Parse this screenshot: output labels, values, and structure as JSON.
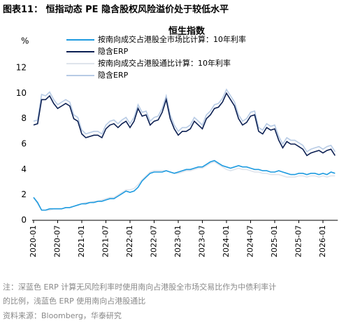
{
  "header": "图表11： 恒指动态 PE 隐含股权风险溢价处于较低水平",
  "notes": [
    "注：深蓝色 ERP 计算无风险利率时使用南向占港股全市场交易比作为中债利率计",
    "的比例，浅蓝色 ERP 使用南向占港股通比",
    "资料来源：Bloomberg，华泰研究"
  ],
  "chart_data": {
    "type": "line",
    "title": "恒生指数",
    "y_label": "%",
    "categories": [
      "2020-01",
      null,
      null,
      null,
      null,
      null,
      "2020-07",
      null,
      null,
      null,
      null,
      null,
      "2021-01",
      null,
      null,
      null,
      null,
      null,
      "2021-07",
      null,
      null,
      null,
      null,
      null,
      "2022-01",
      null,
      null,
      null,
      null,
      null,
      "2022-07",
      null,
      null,
      null,
      null,
      null,
      "2023-01",
      null,
      null,
      null,
      null,
      null,
      "2023-07",
      null,
      null,
      null,
      null,
      null,
      "2024-01",
      null,
      null,
      null,
      null,
      null,
      "2024-07",
      null,
      null,
      null,
      null,
      null,
      "2025-01",
      null,
      null,
      null,
      null,
      null,
      "2025-07",
      null,
      null,
      null,
      null,
      null,
      "2026-01",
      null,
      null,
      null
    ],
    "ylim": [
      0,
      12
    ],
    "yticks": [
      0,
      2,
      4,
      6,
      8,
      10,
      12
    ],
    "series": [
      {
        "name": "按南向成交占港股全市场比计算：10年利率",
        "color": "#1e9be0",
        "values": [
          1.8,
          1.4,
          0.8,
          0.8,
          0.9,
          0.9,
          0.9,
          0.9,
          1.0,
          1.0,
          1.1,
          1.2,
          1.3,
          1.3,
          1.4,
          1.4,
          1.5,
          1.5,
          1.6,
          1.7,
          1.7,
          1.9,
          2.1,
          2.3,
          2.2,
          2.3,
          2.6,
          3.1,
          3.4,
          3.7,
          3.8,
          3.8,
          3.8,
          3.9,
          3.8,
          3.7,
          3.8,
          3.9,
          4.0,
          4.0,
          4.1,
          4.2,
          4.2,
          4.4,
          4.6,
          4.7,
          4.5,
          4.3,
          4.2,
          4.1,
          4.2,
          4.3,
          4.2,
          4.2,
          4.1,
          4.0,
          4.0,
          3.9,
          3.9,
          3.8,
          3.8,
          3.9,
          3.8,
          3.7,
          3.6,
          3.6,
          3.7,
          3.7,
          3.6,
          3.7,
          3.7,
          3.6,
          3.7,
          3.6,
          3.8,
          3.7
        ]
      },
      {
        "name": "隐含ERP",
        "color": "#0b1f52",
        "values": [
          7.5,
          7.6,
          9.5,
          9.5,
          9.8,
          9.2,
          8.8,
          9.0,
          9.2,
          9.0,
          8.0,
          7.8,
          6.8,
          6.5,
          6.6,
          6.7,
          6.7,
          6.5,
          7.2,
          7.5,
          7.6,
          7.3,
          7.6,
          7.8,
          7.3,
          7.8,
          8.8,
          8.2,
          8.3,
          7.5,
          7.8,
          7.9,
          8.5,
          9.5,
          8.0,
          7.2,
          6.7,
          7.0,
          7.0,
          7.2,
          7.8,
          7.5,
          7.2,
          8.0,
          8.3,
          8.8,
          8.9,
          9.3,
          10.0,
          9.5,
          9.0,
          8.0,
          7.5,
          7.7,
          8.2,
          8.3,
          7.0,
          6.8,
          7.3,
          7.1,
          7.2,
          6.3,
          5.7,
          6.2,
          6.0,
          6.0,
          5.8,
          5.6,
          5.1,
          5.3,
          5.4,
          5.5,
          5.3,
          5.5,
          5.6,
          5.1
        ]
      },
      {
        "name": "按南向成交占港股通比计算：10年利率",
        "color": "#dfe4ec",
        "values": [
          1.8,
          1.3,
          0.8,
          0.8,
          0.8,
          0.9,
          0.9,
          0.9,
          1.0,
          1.0,
          1.1,
          1.2,
          1.3,
          1.4,
          1.4,
          1.5,
          1.5,
          1.6,
          1.7,
          1.8,
          1.8,
          2.0,
          2.2,
          2.4,
          2.4,
          2.5,
          2.8,
          3.2,
          3.5,
          3.8,
          3.9,
          3.9,
          3.9,
          3.9,
          3.8,
          3.7,
          3.7,
          3.8,
          3.9,
          3.9,
          4.0,
          4.1,
          4.1,
          4.3,
          4.5,
          4.6,
          4.4,
          4.2,
          4.0,
          3.9,
          4.0,
          4.1,
          4.0,
          4.0,
          3.9,
          3.8,
          3.8,
          3.7,
          3.7,
          3.6,
          3.6,
          3.6,
          3.5,
          3.4,
          3.4,
          3.4,
          3.5,
          3.5,
          3.4,
          3.5,
          3.5,
          3.4,
          3.5,
          3.4,
          3.5,
          3.5
        ]
      },
      {
        "name": "隐含ERP",
        "color": "#b7cbe5",
        "values": [
          7.8,
          7.9,
          9.9,
          9.8,
          10.1,
          9.5,
          9.1,
          9.3,
          9.5,
          9.3,
          8.3,
          8.1,
          7.1,
          6.8,
          6.9,
          7.0,
          7.0,
          6.8,
          7.5,
          7.8,
          7.9,
          7.6,
          7.9,
          8.1,
          7.6,
          8.1,
          9.1,
          8.5,
          8.6,
          7.8,
          8.1,
          8.2,
          8.8,
          9.8,
          8.3,
          7.5,
          7.0,
          7.3,
          7.3,
          7.5,
          8.1,
          7.8,
          7.5,
          8.3,
          8.6,
          9.1,
          9.2,
          9.6,
          10.3,
          9.8,
          9.3,
          8.3,
          7.8,
          8.0,
          8.5,
          8.6,
          7.3,
          7.1,
          7.6,
          7.4,
          7.5,
          6.6,
          6.0,
          6.5,
          6.3,
          6.3,
          6.1,
          5.9,
          5.4,
          5.6,
          5.7,
          5.8,
          5.6,
          5.8,
          5.9,
          5.4
        ]
      }
    ]
  }
}
